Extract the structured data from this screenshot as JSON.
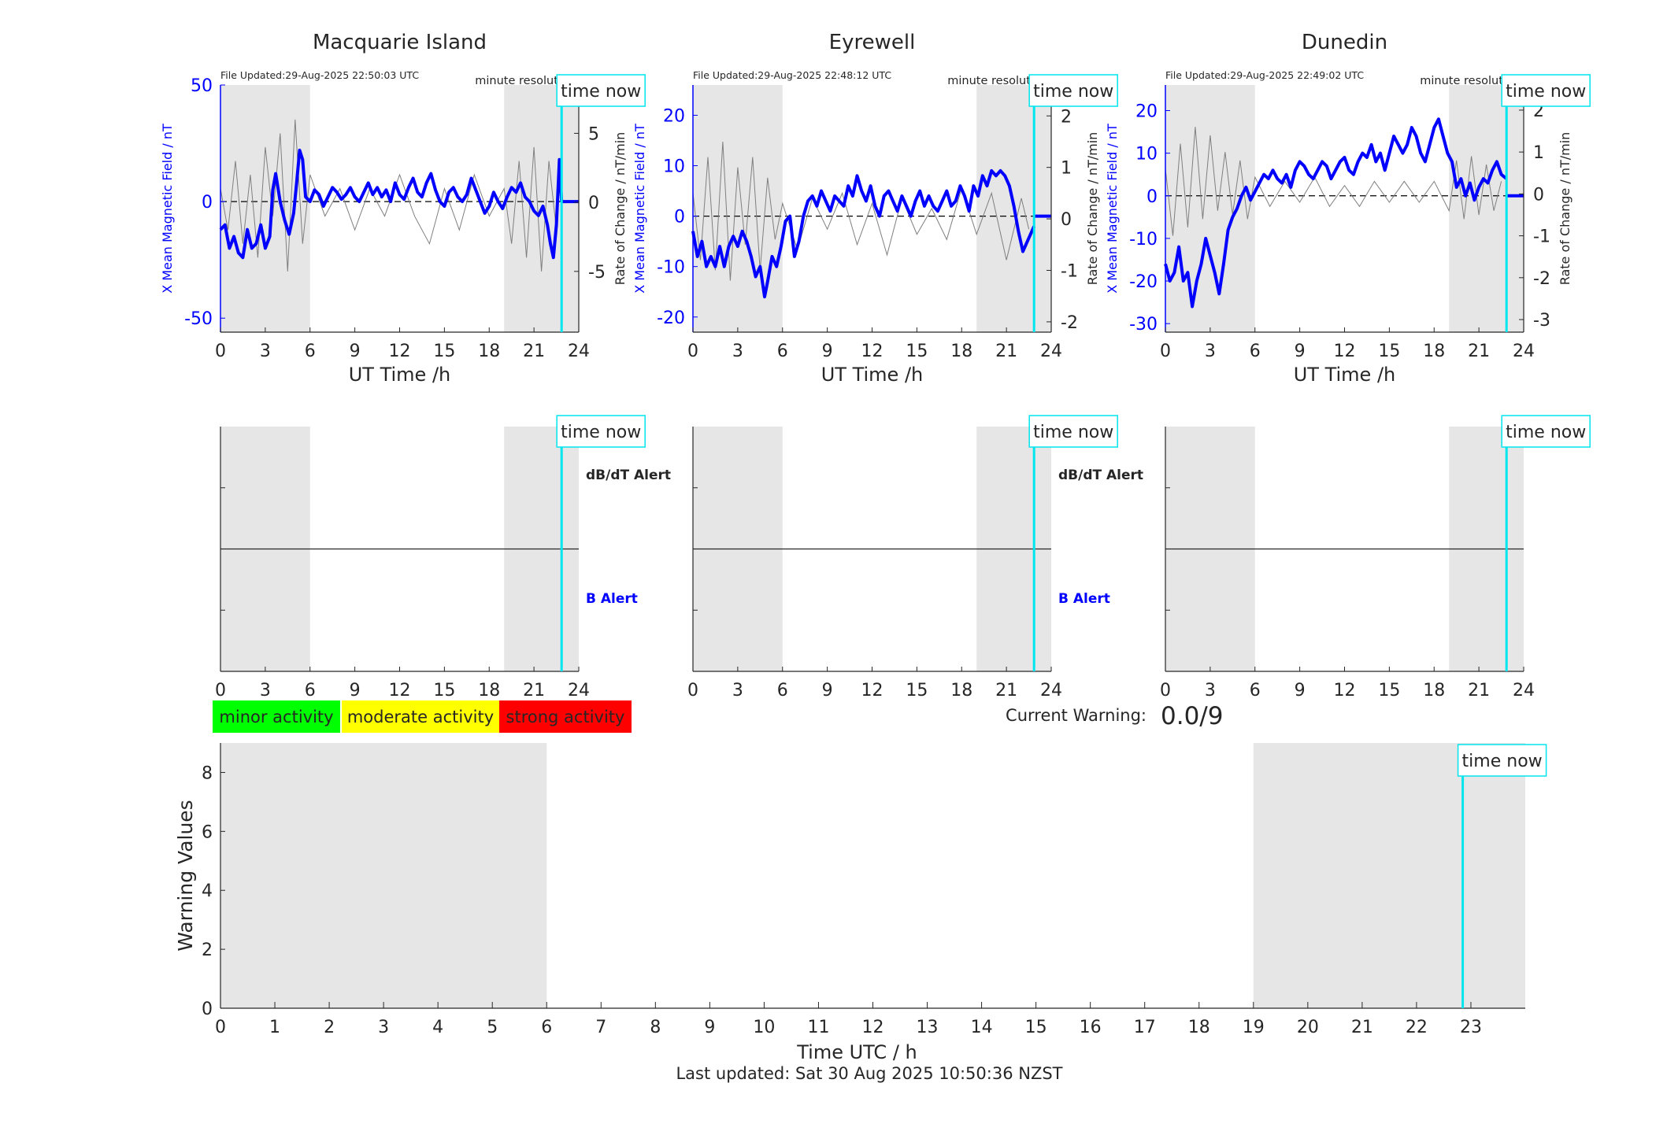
{
  "footer": {
    "last_updated": "Last updated: Sat 30 Aug 2025 10:50:36 NZST"
  },
  "colors": {
    "field_line": "#0000ff",
    "rate_line": "#7f7f7f",
    "night_shade": "#e6e6e6",
    "time_now": "#00e5ee",
    "minor": "#00ff00",
    "moderate": "#ffff00",
    "strong": "#ff0000"
  },
  "common": {
    "time_now_label": "time now",
    "resolution_label": "minute resolution",
    "xlabel": "UT Time /h",
    "left_ylabel": "X Mean Magnetic Field / nT",
    "right_ylabel": "Rate of Change / nT/min",
    "dbdt_alert_label": "dB/dT Alert",
    "b_alert_label": "B Alert"
  },
  "legend": {
    "minor": "minor activity",
    "moderate": "moderate activity",
    "strong": "strong activity"
  },
  "warning": {
    "label": "Current Warning:",
    "value": "0.0/9"
  },
  "chart_data": [
    {
      "type": "line",
      "station": "Macquarie Island",
      "file_updated": "File Updated:29-Aug-2025 22:50:03 UTC",
      "x_range": [
        0,
        24
      ],
      "xticks": [
        0,
        3,
        6,
        9,
        12,
        15,
        18,
        21,
        24
      ],
      "left_ylim": [
        -56,
        50
      ],
      "left_yticks": [
        -50,
        0,
        50
      ],
      "right_ylim": [
        -9.4,
        8.5
      ],
      "right_yticks": [
        -5,
        0,
        5
      ],
      "night_shading": [
        [
          0,
          6
        ],
        [
          19,
          24
        ]
      ],
      "time_now": 22.85,
      "series": [
        {
          "axis": "left",
          "x": [
            0,
            0.3,
            0.6,
            0.9,
            1.2,
            1.5,
            1.8,
            2.1,
            2.4,
            2.7,
            3.0,
            3.3,
            3.5,
            3.7,
            4.0,
            4.3,
            4.6,
            4.9,
            5.1,
            5.3,
            5.5,
            5.7,
            6.0,
            6.3,
            6.6,
            6.9,
            7.2,
            7.5,
            7.8,
            8.1,
            8.4,
            8.7,
            9.0,
            9.3,
            9.6,
            9.9,
            10.2,
            10.5,
            10.8,
            11.1,
            11.4,
            11.7,
            12.0,
            12.3,
            12.6,
            12.9,
            13.2,
            13.5,
            13.8,
            14.1,
            14.4,
            14.7,
            15.0,
            15.3,
            15.6,
            15.9,
            16.2,
            16.5,
            16.8,
            17.1,
            17.4,
            17.7,
            18.0,
            18.3,
            18.6,
            18.9,
            19.2,
            19.5,
            19.8,
            20.1,
            20.4,
            20.7,
            21.0,
            21.3,
            21.6,
            21.9,
            22.1,
            22.3,
            22.5,
            22.7,
            22.85
          ],
          "y": [
            -12,
            -10,
            -20,
            -15,
            -22,
            -24,
            -12,
            -20,
            -18,
            -10,
            -20,
            -15,
            5,
            12,
            0,
            -8,
            -14,
            -5,
            8,
            22,
            18,
            2,
            0,
            5,
            3,
            -2,
            2,
            6,
            4,
            1,
            3,
            6,
            2,
            0,
            4,
            8,
            3,
            6,
            2,
            5,
            0,
            8,
            3,
            1,
            6,
            10,
            4,
            2,
            8,
            12,
            5,
            0,
            -2,
            4,
            6,
            2,
            0,
            3,
            10,
            5,
            0,
            -5,
            -2,
            4,
            0,
            -3,
            2,
            6,
            4,
            8,
            2,
            0,
            -4,
            -6,
            -2,
            -10,
            -18,
            -24,
            -10,
            18,
            0
          ]
        },
        {
          "axis": "right",
          "x": [
            0,
            0.5,
            1,
            1.5,
            2,
            2.5,
            3,
            3.5,
            4,
            4.5,
            5,
            5.5,
            6,
            7,
            8,
            9,
            10,
            11,
            12,
            13,
            14,
            15,
            16,
            17,
            18,
            19,
            19.5,
            20,
            20.5,
            21,
            21.5,
            22,
            22.5
          ],
          "y": [
            1,
            -2,
            3,
            -3,
            2,
            -4,
            4,
            -1,
            5,
            -5,
            6,
            -3,
            2,
            -1,
            1,
            -2,
            1,
            -1,
            2,
            -1,
            -3,
            1,
            -2,
            2,
            -1,
            1,
            -3,
            3,
            -4,
            4,
            -5,
            3,
            -2
          ]
        }
      ]
    },
    {
      "type": "line",
      "station": "Eyrewell",
      "file_updated": "File Updated:29-Aug-2025 22:48:12 UTC",
      "x_range": [
        0,
        24
      ],
      "xticks": [
        0,
        3,
        6,
        9,
        12,
        15,
        18,
        21,
        24
      ],
      "left_ylim": [
        -23,
        26
      ],
      "left_yticks": [
        -20,
        -10,
        0,
        10,
        20
      ],
      "right_ylim": [
        -2.2,
        2.6
      ],
      "right_yticks": [
        -2,
        -1,
        0,
        1,
        2
      ],
      "night_shading": [
        [
          0,
          6
        ],
        [
          19,
          24
        ]
      ],
      "time_now": 22.85,
      "series": [
        {
          "axis": "left",
          "x": [
            0,
            0.3,
            0.6,
            0.9,
            1.2,
            1.5,
            1.8,
            2.1,
            2.4,
            2.7,
            3.0,
            3.3,
            3.6,
            3.9,
            4.2,
            4.5,
            4.8,
            5.0,
            5.3,
            5.6,
            5.9,
            6.2,
            6.5,
            6.8,
            7.1,
            7.4,
            7.7,
            8.0,
            8.3,
            8.6,
            8.9,
            9.2,
            9.5,
            9.8,
            10.1,
            10.4,
            10.7,
            11.0,
            11.3,
            11.6,
            11.9,
            12.2,
            12.5,
            12.8,
            13.1,
            13.4,
            13.7,
            14.0,
            14.3,
            14.6,
            14.9,
            15.2,
            15.5,
            15.8,
            16.1,
            16.4,
            16.7,
            17.0,
            17.3,
            17.6,
            17.9,
            18.2,
            18.5,
            18.8,
            19.1,
            19.4,
            19.7,
            20.0,
            20.3,
            20.6,
            20.9,
            21.2,
            21.5,
            21.8,
            22.1,
            22.4,
            22.7,
            22.85
          ],
          "y": [
            -3,
            -8,
            -5,
            -10,
            -8,
            -10,
            -6,
            -10,
            -6,
            -4,
            -6,
            -3,
            -5,
            -8,
            -12,
            -10,
            -16,
            -13,
            -8,
            -10,
            -6,
            -1,
            0,
            -8,
            -5,
            0,
            3,
            4,
            2,
            5,
            3,
            1,
            4,
            3,
            2,
            6,
            4,
            8,
            5,
            3,
            6,
            2,
            0,
            4,
            5,
            3,
            1,
            4,
            2,
            0,
            3,
            5,
            2,
            4,
            2,
            1,
            3,
            5,
            2,
            3,
            6,
            4,
            1,
            6,
            4,
            8,
            6,
            9,
            8,
            9,
            8,
            6,
            2,
            -3,
            -7,
            -5,
            -3,
            -2
          ]
        },
        {
          "axis": "right",
          "x": [
            0,
            0.5,
            1,
            1.5,
            2,
            2.5,
            3,
            3.5,
            4,
            4.5,
            5,
            5.5,
            6,
            7,
            8,
            9,
            10,
            11,
            12,
            13,
            14,
            15,
            16,
            17,
            18,
            19,
            20,
            21,
            22,
            22.5
          ],
          "y": [
            0.5,
            -0.8,
            1.2,
            -1,
            1.5,
            -1.2,
            1,
            -0.5,
            1.2,
            -1,
            0.8,
            -0.4,
            0.3,
            -0.6,
            0.4,
            -0.2,
            0.5,
            -0.5,
            0.3,
            -0.7,
            0.4,
            -0.3,
            0.2,
            -0.4,
            0.6,
            -0.3,
            0.5,
            -0.8,
            0.4,
            -0.2
          ]
        }
      ]
    },
    {
      "type": "line",
      "station": "Dunedin",
      "file_updated": "File Updated:29-Aug-2025 22:49:02 UTC",
      "x_range": [
        0,
        24
      ],
      "xticks": [
        0,
        3,
        6,
        9,
        12,
        15,
        18,
        21,
        24
      ],
      "left_ylim": [
        -32,
        26
      ],
      "left_yticks": [
        -30,
        -20,
        -10,
        0,
        10,
        20
      ],
      "right_ylim": [
        -3.3,
        2.6
      ],
      "right_yticks": [
        -3,
        -2,
        -1,
        0,
        1,
        2
      ],
      "night_shading": [
        [
          0,
          6
        ],
        [
          19,
          24
        ]
      ],
      "time_now": 22.85,
      "series": [
        {
          "axis": "left",
          "x": [
            0,
            0.3,
            0.6,
            0.9,
            1.2,
            1.5,
            1.8,
            2.1,
            2.4,
            2.7,
            3.0,
            3.3,
            3.6,
            3.9,
            4.2,
            4.5,
            4.8,
            5.1,
            5.4,
            5.7,
            6.0,
            6.3,
            6.6,
            6.9,
            7.2,
            7.5,
            7.8,
            8.1,
            8.4,
            8.7,
            9.0,
            9.3,
            9.6,
            9.9,
            10.2,
            10.5,
            10.8,
            11.1,
            11.4,
            11.7,
            12.0,
            12.3,
            12.6,
            12.9,
            13.2,
            13.5,
            13.8,
            14.1,
            14.4,
            14.7,
            15.0,
            15.3,
            15.6,
            15.9,
            16.2,
            16.5,
            16.8,
            17.1,
            17.4,
            17.7,
            18.0,
            18.3,
            18.6,
            18.9,
            19.2,
            19.5,
            19.8,
            20.1,
            20.4,
            20.7,
            21.0,
            21.3,
            21.6,
            21.9,
            22.2,
            22.5,
            22.85
          ],
          "y": [
            -16,
            -20,
            -18,
            -12,
            -20,
            -18,
            -26,
            -20,
            -16,
            -10,
            -14,
            -18,
            -23,
            -16,
            -8,
            -5,
            -3,
            0,
            2,
            -1,
            1,
            3,
            5,
            4,
            6,
            4,
            3,
            5,
            2,
            6,
            8,
            7,
            5,
            4,
            6,
            8,
            7,
            4,
            6,
            8,
            9,
            6,
            5,
            8,
            10,
            9,
            12,
            8,
            10,
            6,
            10,
            14,
            12,
            10,
            12,
            16,
            14,
            10,
            8,
            12,
            16,
            18,
            14,
            10,
            8,
            2,
            4,
            0,
            3,
            -1,
            2,
            4,
            3,
            6,
            8,
            5,
            4
          ]
        },
        {
          "axis": "right",
          "x": [
            0,
            0.5,
            1,
            1.5,
            2,
            2.5,
            3,
            3.5,
            4,
            4.5,
            5,
            5.5,
            6,
            7,
            8,
            9,
            10,
            11,
            12,
            13,
            14,
            15,
            16,
            17,
            18,
            19,
            19.5,
            20,
            20.5,
            21,
            21.5,
            22,
            22.5
          ],
          "y": [
            0.6,
            -1,
            1.2,
            -0.8,
            1.6,
            -0.6,
            1.4,
            -0.4,
            1,
            -0.5,
            0.8,
            -0.6,
            0.4,
            -0.3,
            0.3,
            -0.2,
            0.4,
            -0.3,
            0.2,
            -0.3,
            0.3,
            -0.2,
            0.3,
            -0.2,
            0.3,
            -0.4,
            0.8,
            -0.6,
            0.9,
            -0.5,
            0.7,
            -0.4,
            0.3
          ]
        }
      ]
    },
    {
      "type": "line",
      "title": "",
      "xlabel": "Time UTC / h",
      "ylabel": "Warning Values",
      "x_range": [
        0,
        24
      ],
      "xticks": [
        0,
        1,
        2,
        3,
        4,
        5,
        6,
        7,
        8,
        9,
        10,
        11,
        12,
        13,
        14,
        15,
        16,
        17,
        18,
        19,
        20,
        21,
        22,
        23
      ],
      "ylim": [
        0,
        9
      ],
      "yticks": [
        0,
        2,
        4,
        6,
        8
      ],
      "night_shading": [
        [
          0,
          6
        ],
        [
          19,
          24
        ]
      ],
      "time_now": 22.85,
      "series": [
        {
          "x": [],
          "y": []
        }
      ]
    }
  ]
}
